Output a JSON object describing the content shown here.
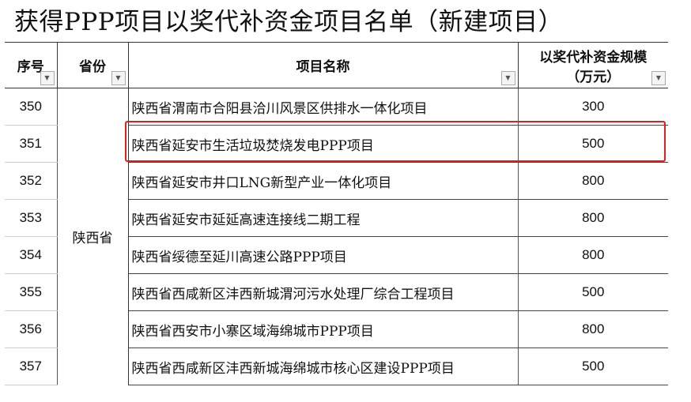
{
  "title": "获得PPP项目以奖代补资金项目名单（新建项目）",
  "headers": {
    "seq": "序号",
    "province": "省份",
    "name": "项目名称",
    "amount_line1": "以奖代补资金规模",
    "amount_line2": "（万元）"
  },
  "province": "陕西省",
  "rows": [
    {
      "seq": "350",
      "name": "陕西省渭南市合阳县洽川风景区供排水一体化项目",
      "amount": "300"
    },
    {
      "seq": "351",
      "name": "陕西省延安市生活垃圾焚烧发电PPP项目",
      "amount": "500"
    },
    {
      "seq": "352",
      "name": "陕西省延安市井口LNG新型产业一体化项目",
      "amount": "800"
    },
    {
      "seq": "353",
      "name": "陕西省延安市延延高速连接线二期工程",
      "amount": "800"
    },
    {
      "seq": "354",
      "name": "陕西省绥德至延川高速公路PPP项目",
      "amount": "800"
    },
    {
      "seq": "355",
      "name": "陕西省西咸新区沣西新城渭河污水处理厂综合工程项目",
      "amount": "500"
    },
    {
      "seq": "356",
      "name": "陕西省西安市小寨区域海绵城市PPP项目",
      "amount": "800"
    },
    {
      "seq": "357",
      "name": "陕西省西咸新区沣西新城海绵城市核心区建设PPP项目",
      "amount": "500"
    }
  ],
  "highlight_color": "#e0201c",
  "filter_icon": "dropdown-arrow-icon"
}
